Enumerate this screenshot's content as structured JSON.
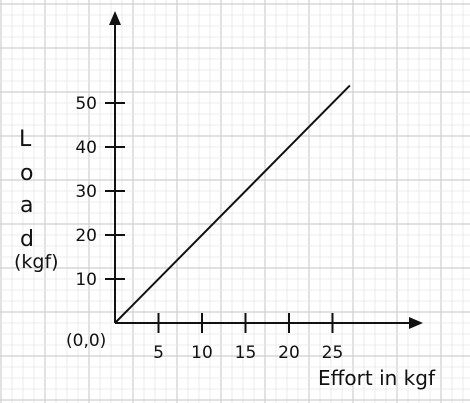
{
  "chart_data": {
    "type": "line",
    "title": "",
    "origin_label": "(0,0)",
    "xlabel": "Effort in kgf",
    "ylabel_letters": [
      "L",
      "o",
      "a",
      "d"
    ],
    "ylabel_unit": "(kgf)",
    "x_ticks": [
      "5",
      "10",
      "15",
      "20",
      "25"
    ],
    "y_ticks": [
      "10",
      "20",
      "30",
      "40",
      "50"
    ],
    "xlim": [
      0,
      30
    ],
    "ylim": [
      0,
      60
    ],
    "grid": true,
    "series": [
      {
        "x": [
          0,
          27
        ],
        "y": [
          0,
          54
        ]
      }
    ]
  }
}
